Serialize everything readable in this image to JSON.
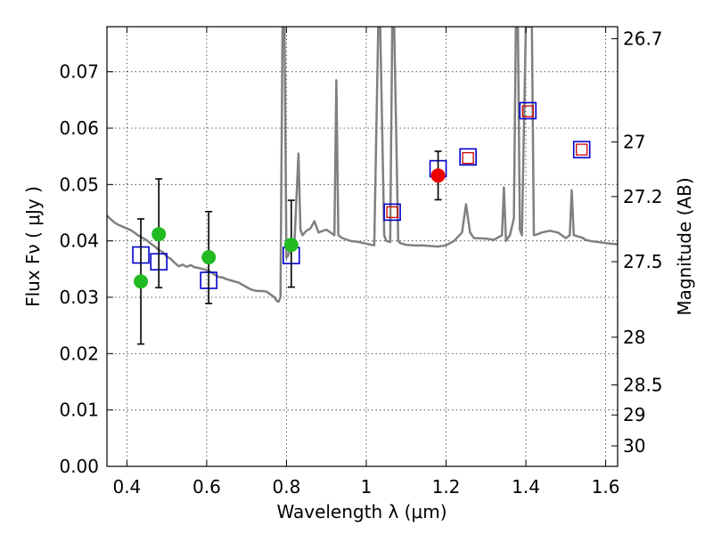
{
  "chart_data": {
    "type": "scatter",
    "xlabel": "Wavelength  λ (μm)",
    "ylabel": "Flux  Fν  ( μJy )",
    "ylabel_right": "Magnitude (AB)",
    "xlim": [
      0.35,
      1.63
    ],
    "ylim": [
      0.0,
      0.078
    ],
    "grid": true,
    "x_ticks": [
      {
        "value": 0.4,
        "label": "0.4"
      },
      {
        "value": 0.6,
        "label": "0.6"
      },
      {
        "value": 0.8,
        "label": "0.8"
      },
      {
        "value": 1.0,
        "label": "1"
      },
      {
        "value": 1.2,
        "label": "1.2"
      },
      {
        "value": 1.4,
        "label": "1.4"
      },
      {
        "value": 1.6,
        "label": "1.6"
      }
    ],
    "y_ticks": [
      {
        "value": 0.0,
        "label": "0.00"
      },
      {
        "value": 0.01,
        "label": "0.01"
      },
      {
        "value": 0.02,
        "label": "0.02"
      },
      {
        "value": 0.03,
        "label": "0.03"
      },
      {
        "value": 0.04,
        "label": "0.04"
      },
      {
        "value": 0.05,
        "label": "0.05"
      },
      {
        "value": 0.06,
        "label": "0.06"
      },
      {
        "value": 0.07,
        "label": "0.07"
      }
    ],
    "mag_ticks": [
      {
        "value": 26.7,
        "label": "26.7"
      },
      {
        "value": 27,
        "label": "27"
      },
      {
        "value": 27.2,
        "label": "27.2"
      },
      {
        "value": 27.5,
        "label": "27.5"
      },
      {
        "value": 28,
        "label": "28"
      },
      {
        "value": 28.5,
        "label": "28.5"
      },
      {
        "value": 29,
        "label": "29"
      },
      {
        "value": 30,
        "label": "30"
      }
    ],
    "series": [
      {
        "name": "model_spectrum",
        "style": "line",
        "color": "#808080",
        "x": [
          0.35,
          0.36,
          0.37,
          0.38,
          0.39,
          0.4,
          0.41,
          0.42,
          0.43,
          0.44,
          0.45,
          0.46,
          0.47,
          0.48,
          0.49,
          0.5,
          0.51,
          0.52,
          0.53,
          0.54,
          0.55,
          0.56,
          0.57,
          0.58,
          0.59,
          0.6,
          0.61,
          0.62,
          0.63,
          0.64,
          0.65,
          0.66,
          0.67,
          0.68,
          0.69,
          0.7,
          0.71,
          0.72,
          0.73,
          0.74,
          0.75,
          0.76,
          0.77,
          0.775,
          0.78,
          0.785,
          0.79,
          0.795,
          0.8,
          0.805,
          0.81,
          0.82,
          0.83,
          0.835,
          0.84,
          0.85,
          0.86,
          0.87,
          0.88,
          0.9,
          0.92,
          0.925,
          0.93,
          0.94,
          0.96,
          0.98,
          1.0,
          1.02,
          1.03,
          1.035,
          1.045,
          1.05,
          1.06,
          1.065,
          1.07,
          1.08,
          1.085,
          1.09,
          1.1,
          1.12,
          1.14,
          1.16,
          1.18,
          1.2,
          1.22,
          1.24,
          1.25,
          1.26,
          1.27,
          1.3,
          1.32,
          1.34,
          1.345,
          1.35,
          1.36,
          1.37,
          1.375,
          1.38,
          1.385,
          1.39,
          1.4,
          1.41,
          1.415,
          1.42,
          1.43,
          1.44,
          1.46,
          1.48,
          1.5,
          1.51,
          1.515,
          1.52,
          1.53,
          1.54,
          1.55,
          1.56,
          1.58,
          1.6,
          1.63
        ],
        "y": [
          0.0445,
          0.0438,
          0.0432,
          0.0428,
          0.0425,
          0.0422,
          0.0419,
          0.0414,
          0.0409,
          0.0405,
          0.0401,
          0.0395,
          0.039,
          0.0384,
          0.038,
          0.0372,
          0.0368,
          0.0361,
          0.0355,
          0.0358,
          0.0354,
          0.0357,
          0.0353,
          0.0352,
          0.035,
          0.0348,
          0.0345,
          0.034,
          0.0336,
          0.0335,
          0.0332,
          0.033,
          0.0328,
          0.0326,
          0.0322,
          0.0318,
          0.0314,
          0.0312,
          0.0311,
          0.0311,
          0.031,
          0.0305,
          0.03,
          0.0294,
          0.0292,
          0.03,
          0.078,
          0.078,
          0.037,
          0.0375,
          0.039,
          0.0398,
          0.0555,
          0.042,
          0.041,
          0.0418,
          0.0422,
          0.0435,
          0.0415,
          0.042,
          0.041,
          0.0685,
          0.041,
          0.0405,
          0.04,
          0.0398,
          0.0395,
          0.0392,
          0.078,
          0.078,
          0.041,
          0.04,
          0.0398,
          0.078,
          0.078,
          0.04,
          0.0396,
          0.0395,
          0.0393,
          0.0392,
          0.0392,
          0.0391,
          0.039,
          0.0392,
          0.04,
          0.0415,
          0.0465,
          0.0415,
          0.0405,
          0.0404,
          0.0402,
          0.041,
          0.0495,
          0.04,
          0.041,
          0.044,
          0.078,
          0.078,
          0.042,
          0.041,
          0.078,
          0.078,
          0.078,
          0.041,
          0.0412,
          0.0415,
          0.0418,
          0.0415,
          0.0405,
          0.041,
          0.049,
          0.041,
          0.0408,
          0.0406,
          0.0402,
          0.04,
          0.0398,
          0.0396,
          0.0394
        ]
      },
      {
        "name": "model_photometry",
        "style": "open_square",
        "color": "#0000cc",
        "x": [
          0.435,
          0.48,
          0.605,
          0.812,
          1.065,
          1.18,
          1.255,
          1.405,
          1.54
        ],
        "y": [
          0.0375,
          0.0363,
          0.033,
          0.0374,
          0.0451,
          0.0528,
          0.0549,
          0.0631,
          0.0562
        ]
      },
      {
        "name": "nir_photometry",
        "style": "small_open_square",
        "color": "#cc0000",
        "x": [
          1.065,
          1.255,
          1.405,
          1.54
        ],
        "y": [
          0.0451,
          0.0547,
          0.063,
          0.0562
        ]
      },
      {
        "name": "observed_optical",
        "style": "filled_circle",
        "color": "#22bb22",
        "x": [
          0.435,
          0.48,
          0.605,
          0.812
        ],
        "y": [
          0.0328,
          0.0412,
          0.0371,
          0.0393
        ],
        "yerr_low": [
          0.0111,
          0.0095,
          0.0082,
          0.0075
        ],
        "yerr_high": [
          0.0111,
          0.0098,
          0.0081,
          0.0079
        ]
      },
      {
        "name": "observed_j",
        "style": "filled_circle",
        "color": "#ee0000",
        "x": [
          1.18
        ],
        "y": [
          0.0516
        ],
        "yerr_low": [
          0.0043
        ],
        "yerr_high": [
          0.0043
        ]
      }
    ]
  }
}
